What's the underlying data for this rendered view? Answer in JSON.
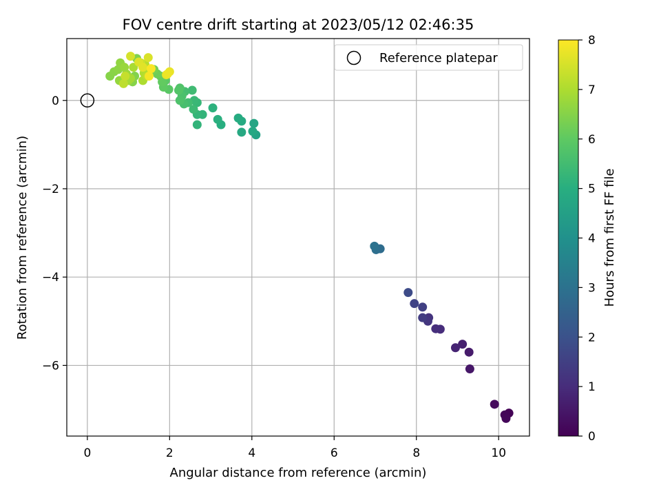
{
  "chart_data": {
    "type": "scatter",
    "title": "FOV centre drift starting at 2023/05/12 02:46:35",
    "xlabel": "Angular distance from reference (arcmin)",
    "ylabel": "Rotation from reference (arcmin)",
    "xlim": [
      -0.5,
      10.75
    ],
    "ylim": [
      -7.6,
      1.4
    ],
    "xticks": [
      0,
      2,
      4,
      6,
      8,
      10
    ],
    "yticks": [
      0,
      -2,
      -4,
      -6
    ],
    "ytick_labels": [
      "0",
      "−2",
      "−4",
      "−6"
    ],
    "grid": true,
    "legend": {
      "placement": "top-right",
      "entries": [
        "Reference platepar"
      ]
    },
    "reference_point": {
      "x": 0,
      "y": 0
    },
    "colorbar": {
      "label": "Hours from first FF file",
      "range": [
        0,
        8
      ],
      "ticks": [
        0,
        1,
        2,
        3,
        4,
        5,
        6,
        7,
        8
      ],
      "colormap": "viridis"
    },
    "points": [
      {
        "x": 10.25,
        "y": -7.08,
        "h": 0.05
      },
      {
        "x": 10.15,
        "y": -7.12,
        "h": 0.1
      },
      {
        "x": 10.18,
        "y": -7.2,
        "h": 0.12
      },
      {
        "x": 9.9,
        "y": -6.88,
        "h": 0.2
      },
      {
        "x": 9.3,
        "y": -6.08,
        "h": 0.5
      },
      {
        "x": 9.28,
        "y": -5.7,
        "h": 0.6
      },
      {
        "x": 9.12,
        "y": -5.52,
        "h": 0.7
      },
      {
        "x": 8.95,
        "y": -5.6,
        "h": 0.8
      },
      {
        "x": 8.58,
        "y": -5.18,
        "h": 1.0
      },
      {
        "x": 8.47,
        "y": -5.17,
        "h": 1.05
      },
      {
        "x": 8.3,
        "y": -4.92,
        "h": 1.2
      },
      {
        "x": 8.28,
        "y": -5.0,
        "h": 1.25
      },
      {
        "x": 8.15,
        "y": -4.92,
        "h": 1.4
      },
      {
        "x": 8.15,
        "y": -4.68,
        "h": 1.5
      },
      {
        "x": 7.95,
        "y": -4.6,
        "h": 1.6
      },
      {
        "x": 7.8,
        "y": -4.35,
        "h": 1.8
      },
      {
        "x": 7.12,
        "y": -3.36,
        "h": 2.8
      },
      {
        "x": 7.02,
        "y": -3.38,
        "h": 2.9
      },
      {
        "x": 6.98,
        "y": -3.3,
        "h": 3.0
      },
      {
        "x": 4.1,
        "y": -0.78,
        "h": 4.6
      },
      {
        "x": 4.05,
        "y": -0.52,
        "h": 4.7
      },
      {
        "x": 4.02,
        "y": -0.7,
        "h": 4.75
      },
      {
        "x": 3.75,
        "y": -0.72,
        "h": 4.8
      },
      {
        "x": 3.75,
        "y": -0.47,
        "h": 4.85
      },
      {
        "x": 3.67,
        "y": -0.4,
        "h": 4.9
      },
      {
        "x": 3.25,
        "y": -0.55,
        "h": 5.0
      },
      {
        "x": 3.17,
        "y": -0.43,
        "h": 5.05
      },
      {
        "x": 3.05,
        "y": -0.17,
        "h": 5.1
      },
      {
        "x": 2.8,
        "y": -0.32,
        "h": 5.2
      },
      {
        "x": 2.67,
        "y": -0.55,
        "h": 5.2
      },
      {
        "x": 2.67,
        "y": -0.32,
        "h": 5.25
      },
      {
        "x": 2.67,
        "y": -0.05,
        "h": 5.3
      },
      {
        "x": 2.6,
        "y": 0.0,
        "h": 5.35
      },
      {
        "x": 2.58,
        "y": -0.2,
        "h": 5.4
      },
      {
        "x": 2.55,
        "y": 0.23,
        "h": 5.45
      },
      {
        "x": 2.45,
        "y": -0.05,
        "h": 5.5
      },
      {
        "x": 2.37,
        "y": 0.2,
        "h": 5.55
      },
      {
        "x": 2.35,
        "y": -0.08,
        "h": 5.6
      },
      {
        "x": 2.3,
        "y": 0.1,
        "h": 5.65
      },
      {
        "x": 2.25,
        "y": 0.0,
        "h": 5.7
      },
      {
        "x": 2.25,
        "y": 0.28,
        "h": 5.75
      },
      {
        "x": 2.22,
        "y": 0.23,
        "h": 5.8
      },
      {
        "x": 1.98,
        "y": 0.25,
        "h": 5.9
      },
      {
        "x": 1.9,
        "y": 0.45,
        "h": 5.95
      },
      {
        "x": 1.85,
        "y": 0.3,
        "h": 6.0
      },
      {
        "x": 1.82,
        "y": 0.42,
        "h": 6.05
      },
      {
        "x": 1.78,
        "y": 0.55,
        "h": 6.1
      },
      {
        "x": 1.7,
        "y": 0.6,
        "h": 6.2
      },
      {
        "x": 1.62,
        "y": 0.7,
        "h": 6.3
      },
      {
        "x": 1.2,
        "y": 0.95,
        "h": 6.4
      },
      {
        "x": 1.15,
        "y": 0.55,
        "h": 6.45
      },
      {
        "x": 1.1,
        "y": 0.42,
        "h": 6.5
      },
      {
        "x": 0.55,
        "y": 0.55,
        "h": 6.5
      },
      {
        "x": 0.65,
        "y": 0.65,
        "h": 6.55
      },
      {
        "x": 0.75,
        "y": 0.7,
        "h": 6.6
      },
      {
        "x": 0.8,
        "y": 0.85,
        "h": 6.65
      },
      {
        "x": 0.78,
        "y": 0.45,
        "h": 6.7
      },
      {
        "x": 0.9,
        "y": 0.75,
        "h": 6.75
      },
      {
        "x": 0.95,
        "y": 0.6,
        "h": 6.8
      },
      {
        "x": 1.0,
        "y": 0.45,
        "h": 6.85
      },
      {
        "x": 1.05,
        "y": 0.5,
        "h": 6.9
      },
      {
        "x": 1.12,
        "y": 0.75,
        "h": 6.95
      },
      {
        "x": 1.35,
        "y": 0.45,
        "h": 7.0
      },
      {
        "x": 1.38,
        "y": 0.62,
        "h": 7.05
      },
      {
        "x": 1.4,
        "y": 0.82,
        "h": 7.1
      },
      {
        "x": 1.45,
        "y": 0.55,
        "h": 7.15
      },
      {
        "x": 0.88,
        "y": 0.38,
        "h": 7.2
      },
      {
        "x": 0.92,
        "y": 0.55,
        "h": 7.3
      },
      {
        "x": 1.3,
        "y": 0.85,
        "h": 7.4
      },
      {
        "x": 1.05,
        "y": 1.0,
        "h": 7.5
      },
      {
        "x": 1.48,
        "y": 0.97,
        "h": 7.55
      },
      {
        "x": 1.25,
        "y": 0.87,
        "h": 7.6
      },
      {
        "x": 1.35,
        "y": 0.75,
        "h": 7.65
      },
      {
        "x": 1.92,
        "y": 0.58,
        "h": 7.7
      },
      {
        "x": 2.0,
        "y": 0.65,
        "h": 7.75
      },
      {
        "x": 1.95,
        "y": 0.6,
        "h": 7.8
      },
      {
        "x": 1.5,
        "y": 0.55,
        "h": 7.9
      },
      {
        "x": 1.55,
        "y": 0.72,
        "h": 7.95
      }
    ]
  }
}
